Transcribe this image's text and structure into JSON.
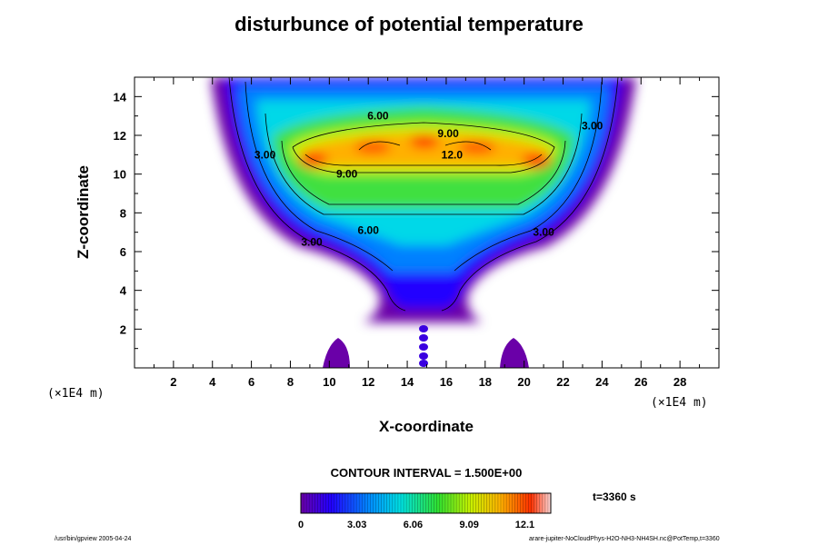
{
  "chart_data": {
    "type": "heatmap",
    "title": "disturbunce of potential temperature",
    "xlabel": "X-coordinate",
    "ylabel": "Z-coordinate",
    "x_unit": "(×1E4 m)",
    "y_unit": "(×1E4 m)",
    "xlim": [
      0,
      30
    ],
    "ylim": [
      0,
      15
    ],
    "x_ticks": [
      2,
      4,
      6,
      8,
      10,
      12,
      14,
      16,
      18,
      20,
      22,
      24,
      26,
      28
    ],
    "y_ticks": [
      2,
      4,
      6,
      8,
      10,
      12,
      14
    ],
    "contour_interval_label": "CONTOUR INTERVAL = 1.500E+00",
    "contour_interval": 1.5,
    "contour_labels": [
      {
        "text": "6.00",
        "x": 12.5,
        "z": 13.0
      },
      {
        "text": "9.00",
        "x": 16.1,
        "z": 12.1
      },
      {
        "text": "12.0",
        "x": 16.3,
        "z": 11.0
      },
      {
        "text": "9.00",
        "x": 10.9,
        "z": 10.0
      },
      {
        "text": "3.00",
        "x": 6.7,
        "z": 11.0
      },
      {
        "text": "3.00",
        "x": 23.5,
        "z": 12.5
      },
      {
        "text": "6.00",
        "x": 12.0,
        "z": 7.1
      },
      {
        "text": "3.00",
        "x": 9.1,
        "z": 6.5
      },
      {
        "text": "3.00",
        "x": 21.0,
        "z": 7.0
      }
    ],
    "colorbar": {
      "min": 0,
      "max": 13.5,
      "tick_labels": [
        "0",
        "3.03",
        "6.06",
        "9.09",
        "12.1"
      ],
      "tick_values": [
        0,
        3.03,
        6.06,
        9.09,
        12.1
      ]
    },
    "time_label": "t=3360 s",
    "grid": false
  },
  "footer": {
    "left": "/usr/bin/gpview 2005-04-24",
    "right": "arare-jupiter-NoCloudPhys-H2O-NH3-NH4SH.nc@PotTemp,t=3360"
  }
}
